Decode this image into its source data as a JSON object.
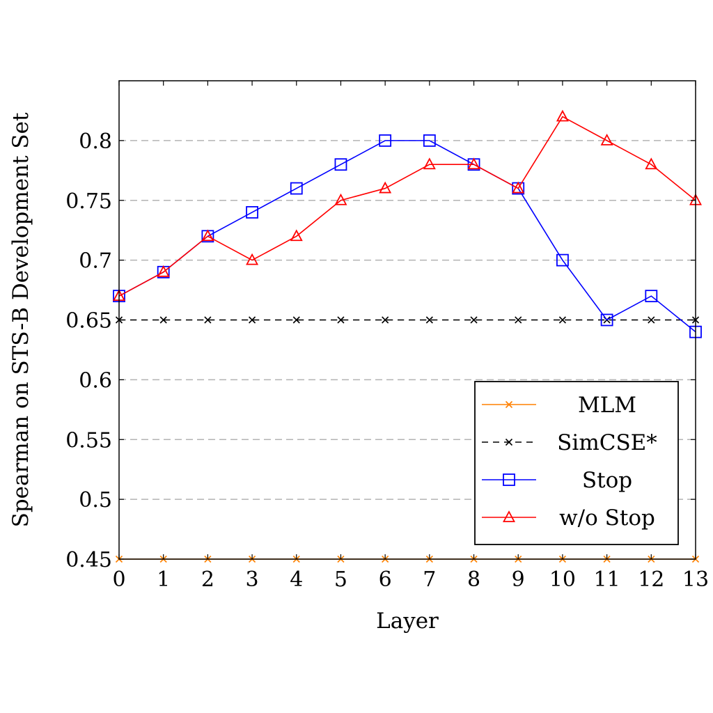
{
  "chart_data": {
    "type": "line",
    "title": "",
    "xlabel": "Layer",
    "ylabel": "Spearman on STS-B Development Set",
    "x": [
      0,
      1,
      2,
      3,
      4,
      5,
      6,
      7,
      8,
      9,
      10,
      11,
      12,
      13
    ],
    "x_tick_labels": [
      "0",
      "1",
      "2",
      "3",
      "4",
      "5",
      "6",
      "7",
      "8",
      "9",
      "10",
      "11",
      "12",
      "13"
    ],
    "y_ticks": [
      0.45,
      0.5,
      0.55,
      0.6,
      0.65,
      0.7,
      0.75,
      0.8
    ],
    "y_tick_labels": [
      "0.45",
      "0.5",
      "0.55",
      "0.6",
      "0.65",
      "0.7",
      "0.75",
      "0.8"
    ],
    "xlim": [
      0,
      13
    ],
    "ylim": [
      0.45,
      0.85
    ],
    "grid": "horizontal dashed",
    "legend_position": "bottom-right",
    "series": [
      {
        "name": "MLM",
        "color": "#ff8000",
        "marker": "x",
        "line_style": "solid",
        "values": [
          0.45,
          0.45,
          0.45,
          0.45,
          0.45,
          0.45,
          0.45,
          0.45,
          0.45,
          0.45,
          0.45,
          0.45,
          0.45,
          0.45
        ]
      },
      {
        "name": "SimCSE*",
        "color": "#000000",
        "marker": "x",
        "line_style": "dashed",
        "values": [
          0.65,
          0.65,
          0.65,
          0.65,
          0.65,
          0.65,
          0.65,
          0.65,
          0.65,
          0.65,
          0.65,
          0.65,
          0.65,
          0.65
        ]
      },
      {
        "name": "Stop",
        "color": "#0000ff",
        "marker": "square",
        "line_style": "solid",
        "values": [
          0.67,
          0.69,
          0.72,
          0.74,
          0.76,
          0.78,
          0.8,
          0.8,
          0.78,
          0.76,
          0.7,
          0.65,
          0.67,
          0.64
        ]
      },
      {
        "name": "w/o Stop",
        "color": "#ff0000",
        "marker": "triangle",
        "line_style": "solid",
        "values": [
          0.67,
          0.69,
          0.72,
          0.7,
          0.72,
          0.75,
          0.76,
          0.78,
          0.78,
          0.76,
          0.82,
          0.8,
          0.78,
          0.75
        ]
      }
    ]
  }
}
